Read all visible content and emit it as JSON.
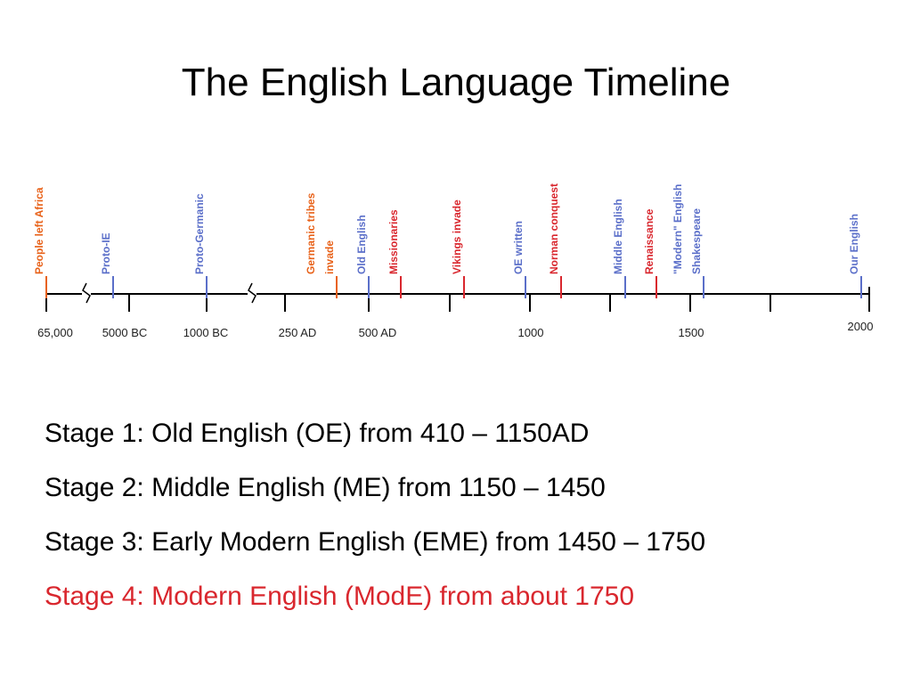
{
  "title": "The English Language Timeline",
  "timeline": {
    "events": [
      {
        "lines": [
          "People left Africa"
        ],
        "color": "#e8621a"
      },
      {
        "lines": [
          "Proto-IE"
        ],
        "color": "#5b6fc9"
      },
      {
        "lines": [
          "Proto-Germanic"
        ],
        "color": "#5b6fc9"
      },
      {
        "lines": [
          "Germanic tribes",
          "invade"
        ],
        "color": "#e8621a"
      },
      {
        "lines": [
          "Old English"
        ],
        "color": "#5b6fc9"
      },
      {
        "lines": [
          "Missionaries"
        ],
        "color": "#d9272e"
      },
      {
        "lines": [
          "Vikings invade"
        ],
        "color": "#d9272e"
      },
      {
        "lines": [
          "OE written"
        ],
        "color": "#5b6fc9"
      },
      {
        "lines": [
          "Norman conquest"
        ],
        "color": "#d9272e"
      },
      {
        "lines": [
          "Middle English"
        ],
        "color": "#5b6fc9"
      },
      {
        "lines": [
          "Renaissance"
        ],
        "color": "#d9272e"
      },
      {
        "lines": [
          "\"Modern\" English",
          "Shakespeare"
        ],
        "color": "#5b6fc9"
      },
      {
        "lines": [
          "Our English"
        ],
        "color": "#5b6fc9"
      }
    ],
    "axis_labels": [
      "65,000",
      "5000 BC",
      "1000 BC",
      "250 AD",
      "500 AD",
      "1000",
      "1500",
      "2000"
    ]
  },
  "stages": [
    {
      "text": "Stage 1: Old English (OE) from 410 – 1150AD",
      "color": "#000000"
    },
    {
      "text": "Stage 2: Middle English (ME) from 1150 – 1450",
      "color": "#000000"
    },
    {
      "text": "Stage 3: Early Modern English (EME) from 1450 – 1750",
      "color": "#000000"
    },
    {
      "text": "Stage 4: Modern English (ModE) from about 1750",
      "color": "#d9272e"
    }
  ]
}
